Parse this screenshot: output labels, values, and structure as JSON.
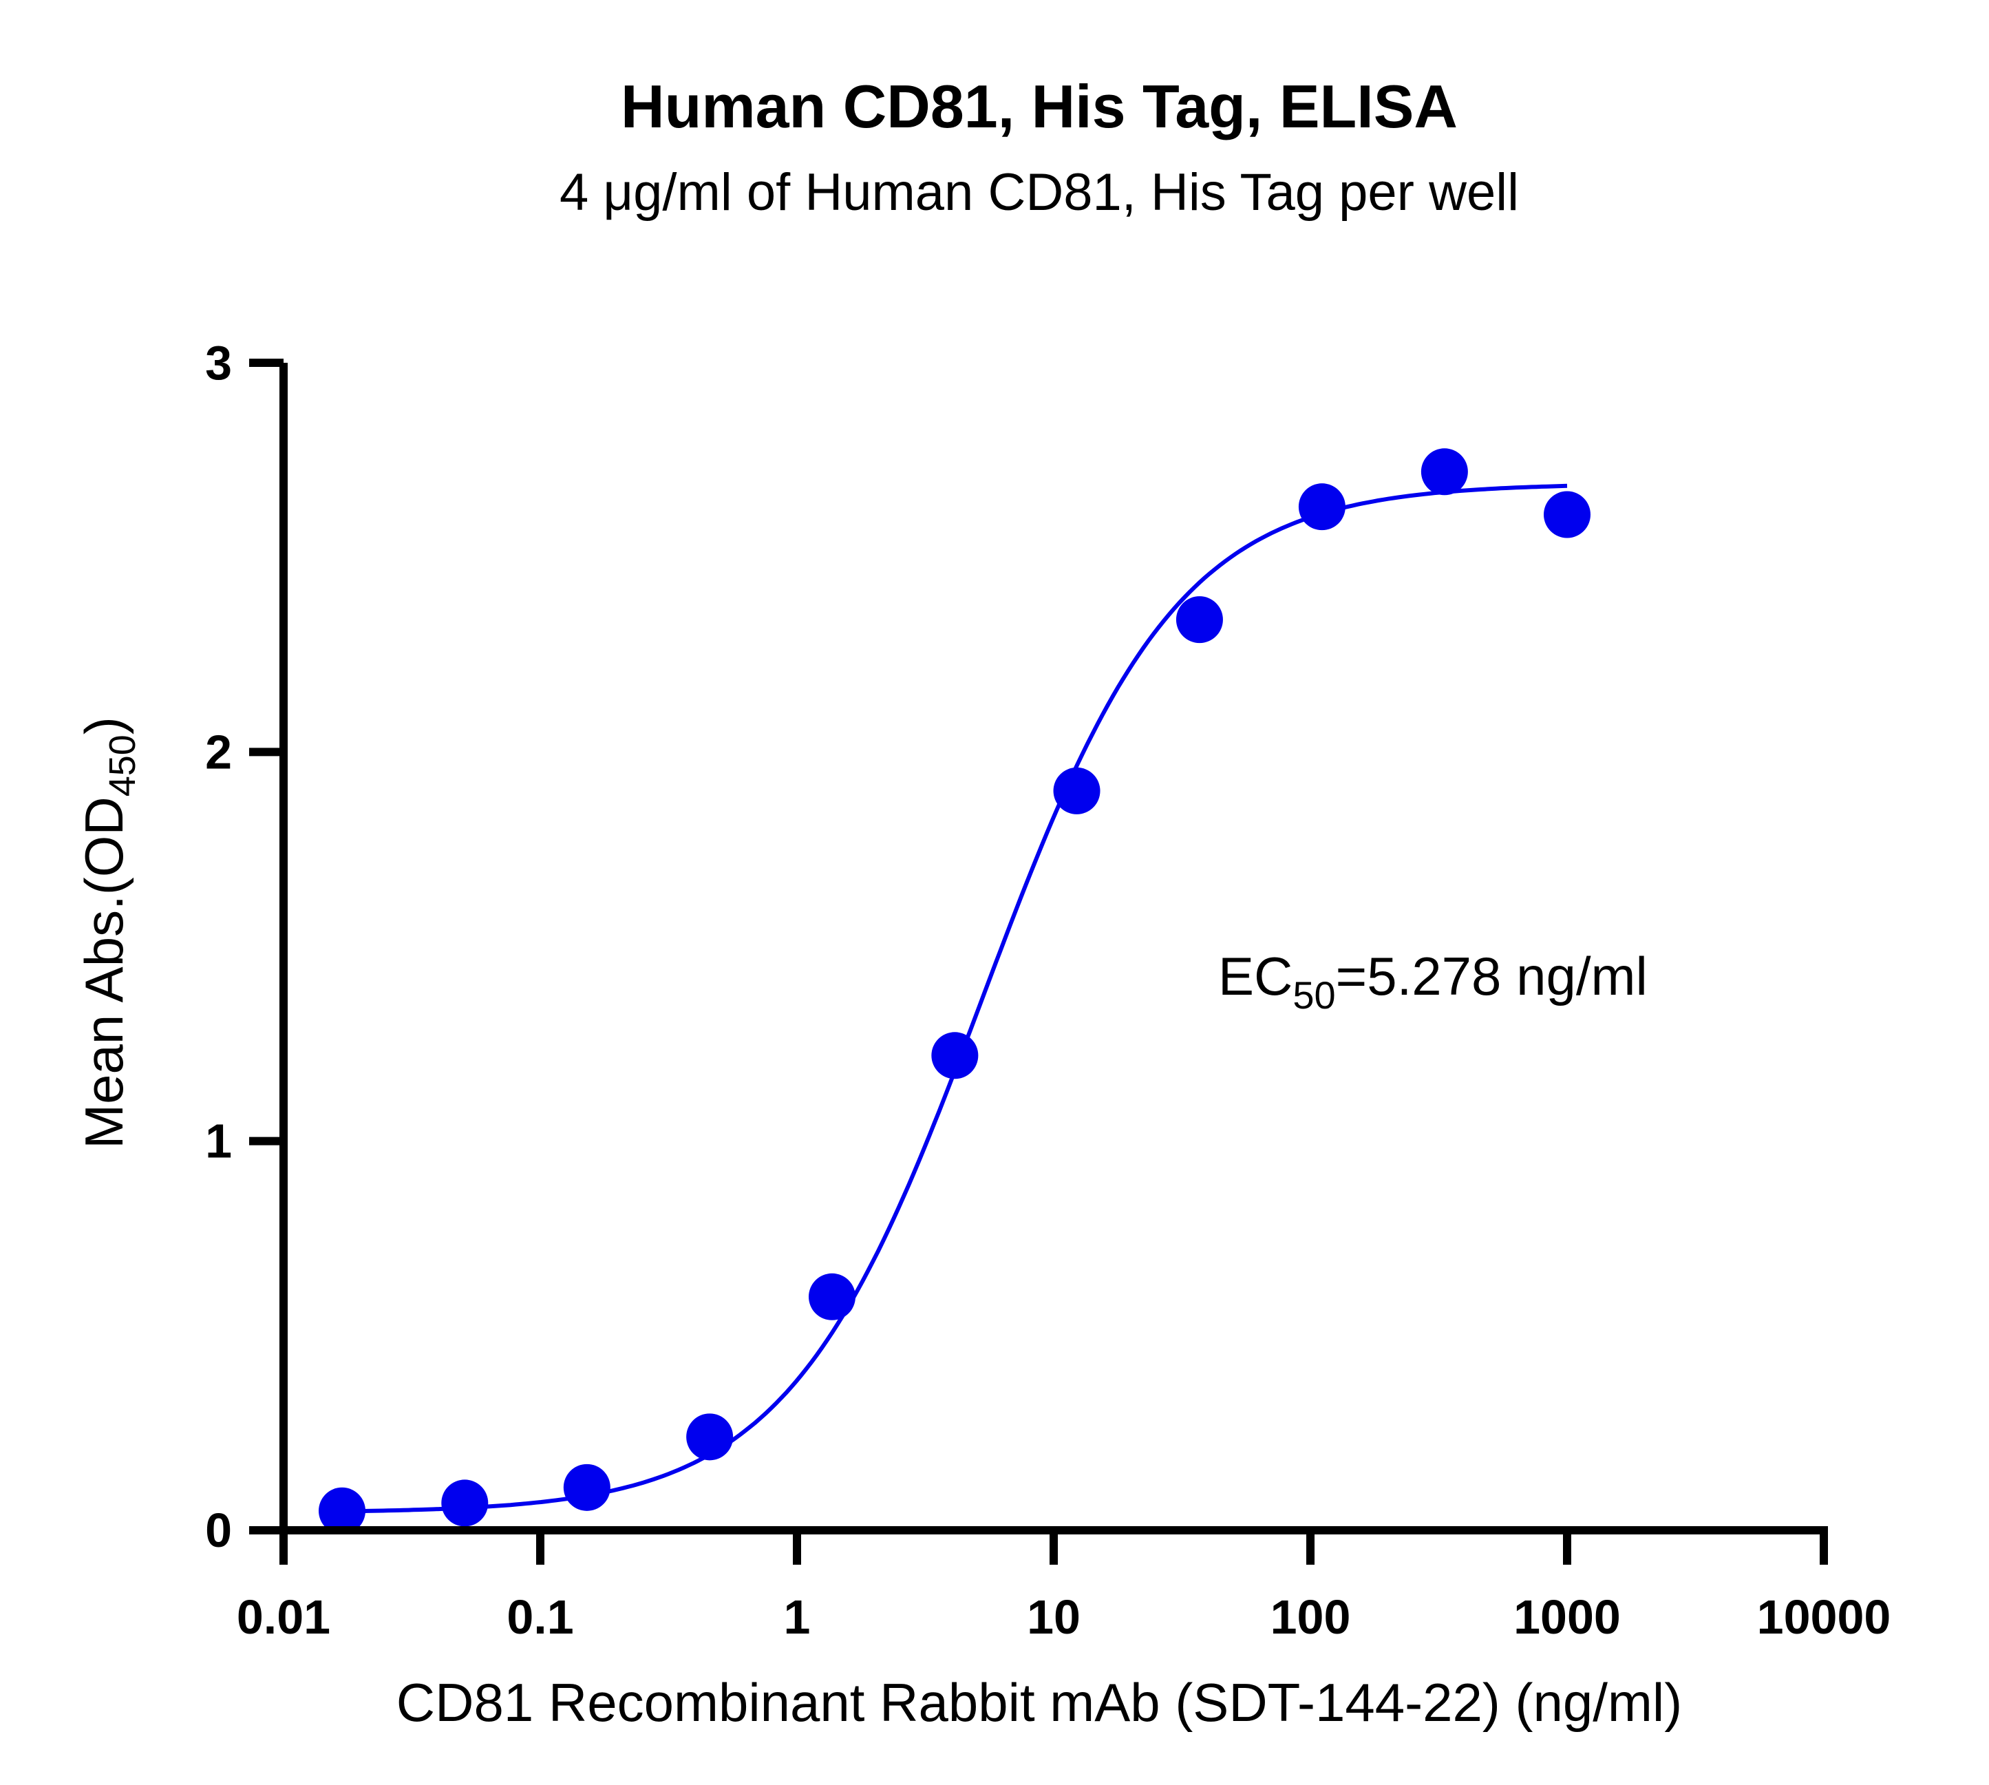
{
  "chart_data": {
    "type": "scatter",
    "title": "Human CD81, His Tag, ELISA",
    "subtitle": "4 μg/ml of Human CD81, His Tag per well",
    "xlabel": "CD81 Recombinant Rabbit mAb (SDT-144-22) (ng/ml)",
    "ylabel": {
      "main": "Mean Abs.(OD",
      "sub": "450",
      "close": ")"
    },
    "x_scale": "log",
    "xlim": [
      0.01,
      10000
    ],
    "ylim": [
      0,
      3
    ],
    "x_ticks": [
      0.01,
      0.1,
      1,
      10,
      100,
      1000,
      10000
    ],
    "x_tick_labels": [
      "0.01",
      "0.1",
      "1",
      "10",
      "100",
      "1000",
      "10000"
    ],
    "y_ticks": [
      0,
      1,
      2,
      3
    ],
    "y_tick_labels": [
      "0",
      "1",
      "2",
      "3"
    ],
    "grid": false,
    "color": "#0000ee",
    "series": [
      {
        "x": [
          0.0169,
          0.0508,
          0.152,
          0.457,
          1.37,
          4.12,
          12.3,
          37.0,
          111,
          333,
          1000
        ],
        "y": [
          0.05,
          0.07,
          0.11,
          0.24,
          0.6,
          1.22,
          1.9,
          2.34,
          2.63,
          2.72,
          2.61
        ]
      }
    ],
    "fit": {
      "bottom": 0.045,
      "top": 2.69,
      "ec50": 5.278,
      "hill": 1.15
    },
    "annotation": {
      "prefix": "EC",
      "sub": "50",
      "suffix": "=5.278 ng/ml"
    }
  }
}
